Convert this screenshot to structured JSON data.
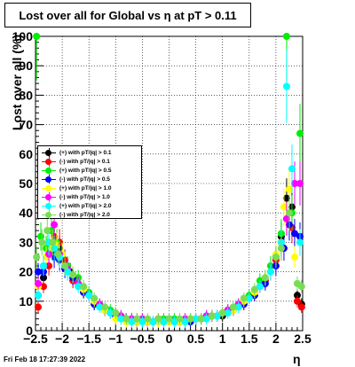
{
  "chart_data": {
    "type": "scatter",
    "title": "Lost over all for Global vs    η at pT > 0.11",
    "xlabel": "η",
    "ylabel": "Lost over all (%)",
    "xlim": [
      -2.5,
      2.5
    ],
    "ylim": [
      0,
      100
    ],
    "x_ticks": [
      "−2.5",
      "−2",
      "−1.5",
      "−1",
      "−0.5",
      "0",
      "0.5",
      "1",
      "1.5",
      "2",
      "2.5"
    ],
    "y_ticks": [
      "0",
      "10",
      "20",
      "30",
      "40",
      "50",
      "60",
      "70",
      "80",
      "90",
      "100"
    ],
    "grid": true,
    "legend_position": "middle-left",
    "series": [
      {
        "name": "(+) with pT/|q| > 0.1",
        "color": "#000000",
        "marker": "circle",
        "points": [
          [
            -2.45,
            12
          ],
          [
            -2.35,
            18
          ],
          [
            -2.25,
            30
          ],
          [
            -2.15,
            27
          ],
          [
            -2.05,
            28
          ],
          [
            -1.95,
            22
          ],
          [
            -1.85,
            20
          ],
          [
            -1.75,
            17
          ],
          [
            -1.6,
            13
          ],
          [
            -1.4,
            9
          ],
          [
            -1.2,
            7
          ],
          [
            -1.0,
            5
          ],
          [
            -0.8,
            4
          ],
          [
            -0.6,
            3
          ],
          [
            -0.4,
            3
          ],
          [
            -0.2,
            4
          ],
          [
            0.0,
            3
          ],
          [
            0.2,
            3
          ],
          [
            0.4,
            4
          ],
          [
            0.6,
            4
          ],
          [
            0.8,
            5
          ],
          [
            1.0,
            5
          ],
          [
            1.2,
            7
          ],
          [
            1.4,
            10
          ],
          [
            1.6,
            13
          ],
          [
            1.8,
            17
          ],
          [
            2.0,
            25
          ],
          [
            2.1,
            32
          ],
          [
            2.2,
            45
          ],
          [
            2.3,
            42
          ],
          [
            2.4,
            12
          ],
          [
            2.48,
            9
          ]
        ]
      },
      {
        "name": "(-) with pT/|q| > 0.1",
        "color": "#ff0000",
        "marker": "circle",
        "points": [
          [
            -2.45,
            8
          ],
          [
            -2.35,
            15
          ],
          [
            -2.25,
            22
          ],
          [
            -2.15,
            32
          ],
          [
            -2.05,
            30
          ],
          [
            -1.95,
            24
          ],
          [
            -1.8,
            17
          ],
          [
            -1.6,
            14
          ],
          [
            -1.4,
            10
          ],
          [
            -1.2,
            7
          ],
          [
            -1.0,
            6
          ],
          [
            -0.8,
            4
          ],
          [
            -0.6,
            4
          ],
          [
            -0.4,
            3
          ],
          [
            -0.2,
            4
          ],
          [
            0.0,
            4
          ],
          [
            0.2,
            3
          ],
          [
            0.4,
            4
          ],
          [
            0.6,
            4
          ],
          [
            0.8,
            5
          ],
          [
            1.0,
            6
          ],
          [
            1.2,
            7
          ],
          [
            1.4,
            9
          ],
          [
            1.6,
            12
          ],
          [
            1.8,
            17
          ],
          [
            2.0,
            24
          ],
          [
            2.1,
            30
          ],
          [
            2.2,
            38
          ],
          [
            2.3,
            35
          ],
          [
            2.4,
            10
          ],
          [
            2.48,
            8
          ]
        ]
      },
      {
        "name": "(+) with pT/|q| > 0.5",
        "color": "#00ee00",
        "marker": "circle",
        "points": [
          [
            -2.48,
            100
          ],
          [
            -2.4,
            32
          ],
          [
            -2.3,
            28
          ],
          [
            -2.2,
            34
          ],
          [
            -2.1,
            30
          ],
          [
            -2.0,
            26
          ],
          [
            -1.9,
            22
          ],
          [
            -1.7,
            18
          ],
          [
            -1.5,
            13
          ],
          [
            -1.3,
            9
          ],
          [
            -1.1,
            7
          ],
          [
            -0.9,
            5
          ],
          [
            -0.7,
            4
          ],
          [
            -0.5,
            4
          ],
          [
            -0.3,
            3
          ],
          [
            -0.1,
            4
          ],
          [
            0.1,
            4
          ],
          [
            0.3,
            3
          ],
          [
            0.5,
            4
          ],
          [
            0.7,
            5
          ],
          [
            0.9,
            5
          ],
          [
            1.1,
            7
          ],
          [
            1.3,
            9
          ],
          [
            1.5,
            12
          ],
          [
            1.7,
            17
          ],
          [
            1.9,
            22
          ],
          [
            2.1,
            33
          ],
          [
            2.2,
            100
          ],
          [
            2.3,
            40
          ],
          [
            2.45,
            67
          ]
        ]
      },
      {
        "name": "(-) with pT/|q| > 0.5",
        "color": "#0000ff",
        "marker": "circle",
        "points": [
          [
            -2.45,
            20
          ],
          [
            -2.35,
            20
          ],
          [
            -2.25,
            26
          ],
          [
            -2.15,
            25
          ],
          [
            -2.05,
            24
          ],
          [
            -1.95,
            21
          ],
          [
            -1.8,
            18
          ],
          [
            -1.6,
            13
          ],
          [
            -1.4,
            9
          ],
          [
            -1.2,
            7
          ],
          [
            -1.0,
            5
          ],
          [
            -0.8,
            4
          ],
          [
            -0.6,
            3
          ],
          [
            -0.4,
            3
          ],
          [
            -0.2,
            3
          ],
          [
            0.0,
            4
          ],
          [
            0.2,
            3
          ],
          [
            0.4,
            3
          ],
          [
            0.6,
            4
          ],
          [
            0.8,
            5
          ],
          [
            1.0,
            6
          ],
          [
            1.2,
            7
          ],
          [
            1.4,
            9
          ],
          [
            1.6,
            12
          ],
          [
            1.8,
            16
          ],
          [
            2.0,
            22
          ],
          [
            2.15,
            28
          ],
          [
            2.25,
            36
          ],
          [
            2.35,
            33
          ],
          [
            2.45,
            32
          ]
        ]
      },
      {
        "name": "(+) with pT/|q| > 1.0",
        "color": "#ffff00",
        "marker": "circle",
        "points": [
          [
            -2.45,
            15
          ],
          [
            -2.3,
            25
          ],
          [
            -2.2,
            28
          ],
          [
            -2.1,
            29
          ],
          [
            -2.0,
            26
          ],
          [
            -1.8,
            19
          ],
          [
            -1.6,
            14
          ],
          [
            -1.4,
            10
          ],
          [
            -1.2,
            7
          ],
          [
            -1.0,
            4
          ],
          [
            -0.8,
            3
          ],
          [
            -0.6,
            3
          ],
          [
            -0.4,
            3
          ],
          [
            -0.2,
            3
          ],
          [
            0.0,
            3
          ],
          [
            0.2,
            3
          ],
          [
            0.4,
            4
          ],
          [
            0.6,
            4
          ],
          [
            0.8,
            5
          ],
          [
            1.0,
            6
          ],
          [
            1.2,
            7
          ],
          [
            1.4,
            10
          ],
          [
            1.6,
            13
          ],
          [
            1.8,
            18
          ],
          [
            2.0,
            26
          ],
          [
            2.15,
            42
          ],
          [
            2.25,
            48
          ],
          [
            2.35,
            25
          ]
        ]
      },
      {
        "name": "(-) with pT/|q| > 1.0",
        "color": "#ff00ff",
        "marker": "circle",
        "points": [
          [
            -2.45,
            16
          ],
          [
            -2.35,
            22
          ],
          [
            -2.25,
            26
          ],
          [
            -2.15,
            36
          ],
          [
            -2.05,
            26
          ],
          [
            -1.9,
            21
          ],
          [
            -1.7,
            16
          ],
          [
            -1.5,
            12
          ],
          [
            -1.3,
            9
          ],
          [
            -1.1,
            6
          ],
          [
            -0.9,
            5
          ],
          [
            -0.7,
            4
          ],
          [
            -0.5,
            4
          ],
          [
            -0.3,
            3
          ],
          [
            -0.1,
            3
          ],
          [
            0.1,
            3
          ],
          [
            0.3,
            4
          ],
          [
            0.5,
            4
          ],
          [
            0.7,
            5
          ],
          [
            0.9,
            5
          ],
          [
            1.1,
            7
          ],
          [
            1.3,
            9
          ],
          [
            1.5,
            11
          ],
          [
            1.7,
            15
          ],
          [
            1.9,
            20
          ],
          [
            2.1,
            28
          ],
          [
            2.2,
            38
          ],
          [
            2.35,
            50
          ],
          [
            2.45,
            50
          ]
        ]
      },
      {
        "name": "(+) with pT/|q| > 2.0",
        "color": "#00ffff",
        "marker": "circle",
        "points": [
          [
            -2.45,
            12
          ],
          [
            -2.35,
            22
          ],
          [
            -2.25,
            30
          ],
          [
            -2.15,
            28
          ],
          [
            -2.05,
            25
          ],
          [
            -1.9,
            20
          ],
          [
            -1.7,
            15
          ],
          [
            -1.5,
            12
          ],
          [
            -1.3,
            8
          ],
          [
            -1.1,
            6
          ],
          [
            -0.9,
            4
          ],
          [
            -0.7,
            3
          ],
          [
            -0.5,
            3
          ],
          [
            -0.3,
            3
          ],
          [
            -0.1,
            3
          ],
          [
            0.1,
            3
          ],
          [
            0.3,
            3
          ],
          [
            0.5,
            4
          ],
          [
            0.7,
            4
          ],
          [
            0.9,
            5
          ],
          [
            1.1,
            6
          ],
          [
            1.3,
            8
          ],
          [
            1.5,
            11
          ],
          [
            1.7,
            15
          ],
          [
            1.9,
            20
          ],
          [
            2.1,
            30
          ],
          [
            2.2,
            83
          ],
          [
            2.3,
            55
          ],
          [
            2.45,
            30
          ]
        ]
      },
      {
        "name": "(-) with pT/|q| > 2.0",
        "color": "#77dd55",
        "marker": "circle",
        "points": [
          [
            -2.48,
            25
          ],
          [
            -2.38,
            30
          ],
          [
            -2.28,
            34
          ],
          [
            -2.18,
            30
          ],
          [
            -2.08,
            26
          ],
          [
            -1.95,
            22
          ],
          [
            -1.8,
            19
          ],
          [
            -1.6,
            15
          ],
          [
            -1.4,
            11
          ],
          [
            -1.2,
            8
          ],
          [
            -1.0,
            6
          ],
          [
            -0.8,
            4
          ],
          [
            -0.6,
            4
          ],
          [
            -0.4,
            4
          ],
          [
            -0.2,
            4
          ],
          [
            0.0,
            4
          ],
          [
            0.2,
            4
          ],
          [
            0.4,
            4
          ],
          [
            0.6,
            4
          ],
          [
            0.8,
            5
          ],
          [
            1.0,
            6
          ],
          [
            1.2,
            8
          ],
          [
            1.4,
            11
          ],
          [
            1.6,
            14
          ],
          [
            1.8,
            18
          ],
          [
            2.0,
            25
          ],
          [
            2.1,
            28
          ],
          [
            2.25,
            40
          ],
          [
            2.4,
            16
          ],
          [
            2.48,
            15
          ]
        ]
      }
    ]
  },
  "footer": {
    "timestamp": "Fri Feb 18 17:27:39 2022"
  }
}
